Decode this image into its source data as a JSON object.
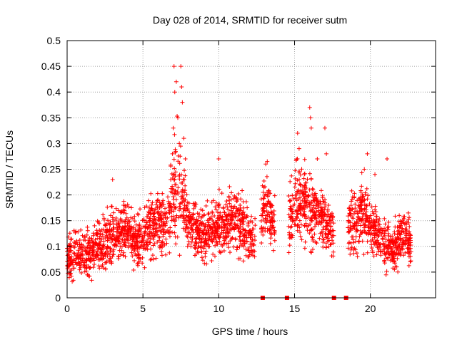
{
  "chart_data": {
    "type": "scatter",
    "title": "Day 028 of 2014, SRMTID for receiver sutm",
    "xlabel": "GPS time / hours",
    "ylabel": "SRMTID / TECUs",
    "xlim": [
      0,
      24.3
    ],
    "ylim": [
      0,
      0.5
    ],
    "xticks": [
      0,
      5,
      10,
      15,
      20
    ],
    "xtick_labels": [
      "0",
      "5",
      "10",
      "15",
      "20"
    ],
    "yticks": [
      0,
      0.05,
      0.1,
      0.15,
      0.2,
      0.25,
      0.3,
      0.35,
      0.4,
      0.45,
      0.5
    ],
    "ytick_labels": [
      "0",
      "0.05",
      "0.1",
      "0.15",
      "0.2",
      "0.25",
      "0.3",
      "0.35",
      "0.4",
      "0.45",
      "0.5"
    ],
    "grid": true,
    "marker": "+",
    "color": "#ff0000",
    "approx_profile": {
      "x": [
        0,
        0.5,
        1,
        1.5,
        2,
        2.5,
        3,
        3.5,
        4,
        4.5,
        5,
        5.5,
        6,
        6.5,
        7,
        7.5,
        8,
        8.5,
        9,
        9.5,
        10,
        10.5,
        11,
        11.5,
        12,
        12.3,
        13,
        13.5,
        14.5,
        15,
        15.5,
        16,
        16.5,
        17,
        17.5,
        18.4,
        19,
        19.5,
        20,
        20.5,
        21,
        21.5,
        22,
        22.5,
        22.7
      ],
      "y": [
        0.07,
        0.09,
        0.085,
        0.09,
        0.1,
        0.11,
        0.12,
        0.13,
        0.13,
        0.11,
        0.12,
        0.14,
        0.15,
        0.14,
        0.2,
        0.2,
        0.14,
        0.13,
        0.12,
        0.125,
        0.14,
        0.15,
        0.15,
        0.14,
        0.12,
        0.1,
        0.18,
        0.15,
        0.14,
        0.18,
        0.19,
        0.17,
        0.16,
        0.15,
        0.14,
        0.13,
        0.15,
        0.17,
        0.15,
        0.12,
        0.1,
        0.09,
        0.12,
        0.11,
        0.1
      ],
      "spread": [
        0.035,
        0.04,
        0.035,
        0.04,
        0.045,
        0.045,
        0.05,
        0.045,
        0.045,
        0.04,
        0.045,
        0.045,
        0.05,
        0.05,
        0.09,
        0.09,
        0.05,
        0.045,
        0.045,
        0.045,
        0.05,
        0.05,
        0.05,
        0.05,
        0.04,
        0.035,
        0.05,
        0.05,
        0.05,
        0.06,
        0.065,
        0.06,
        0.05,
        0.05,
        0.05,
        0.05,
        0.055,
        0.055,
        0.05,
        0.045,
        0.04,
        0.04,
        0.045,
        0.04,
        0.035
      ],
      "segments": [
        [
          0,
          12.4
        ],
        [
          12.8,
          13.7
        ],
        [
          14.6,
          17.6
        ],
        [
          18.5,
          22.7
        ]
      ]
    },
    "spikes": [
      {
        "x": 7.05,
        "y": 0.45
      },
      {
        "x": 7.5,
        "y": 0.45
      },
      {
        "x": 7.2,
        "y": 0.42
      },
      {
        "x": 7.55,
        "y": 0.41
      },
      {
        "x": 7.1,
        "y": 0.4
      },
      {
        "x": 7.6,
        "y": 0.38
      },
      {
        "x": 7.3,
        "y": 0.35
      },
      {
        "x": 7.0,
        "y": 0.33
      },
      {
        "x": 7.7,
        "y": 0.31
      },
      {
        "x": 7.4,
        "y": 0.3
      },
      {
        "x": 6.95,
        "y": 0.28
      },
      {
        "x": 7.8,
        "y": 0.27
      },
      {
        "x": 16.0,
        "y": 0.37
      },
      {
        "x": 16.05,
        "y": 0.35
      },
      {
        "x": 15.2,
        "y": 0.32
      },
      {
        "x": 16.1,
        "y": 0.33
      },
      {
        "x": 17.0,
        "y": 0.33
      },
      {
        "x": 15.3,
        "y": 0.29
      },
      {
        "x": 16.5,
        "y": 0.27
      },
      {
        "x": 17.1,
        "y": 0.28
      },
      {
        "x": 19.8,
        "y": 0.28
      },
      {
        "x": 21.1,
        "y": 0.27
      },
      {
        "x": 19.6,
        "y": 0.25
      },
      {
        "x": 20.3,
        "y": 0.24
      },
      {
        "x": 10.0,
        "y": 0.27
      },
      {
        "x": 3.0,
        "y": 0.23
      },
      {
        "x": 13.2,
        "y": 0.265
      },
      {
        "x": 13.1,
        "y": 0.26
      }
    ],
    "zero_markers_x": [
      12.9,
      14.5,
      17.6,
      18.4
    ],
    "point_count": 2600
  }
}
